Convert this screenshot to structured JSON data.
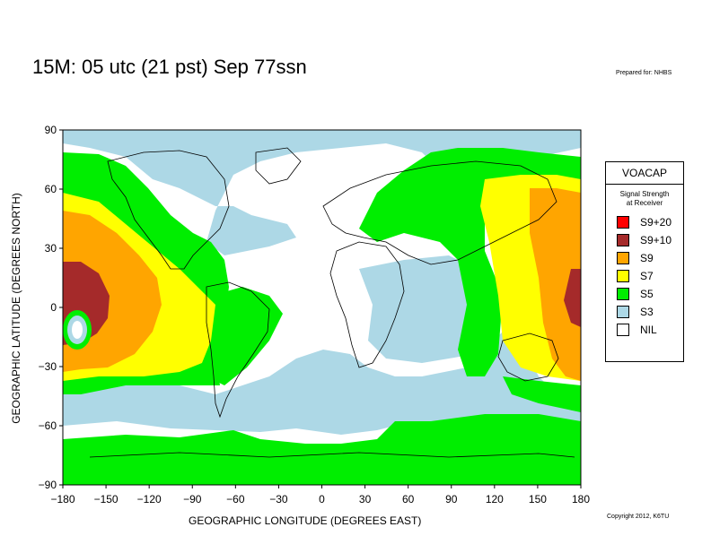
{
  "title": "15M:  05 utc (21 pst) Sep 77ssn",
  "prepared_for": "Prepared for: NHBS",
  "copyright": "Copyright 2012, K6TU",
  "map": {
    "x_axis_label": "GEOGRAPHIC LONGITUDE (DEGREES EAST)",
    "y_axis_label": "GEOGRAPHIC LATITUDE (DEGREES NORTH)",
    "x_ticks": [
      "−180",
      "−150",
      "−120",
      "−90",
      "−60",
      "−30",
      "0",
      "30",
      "60",
      "90",
      "120",
      "150",
      "180"
    ],
    "y_ticks": [
      "90",
      "60",
      "30",
      "0",
      "−30",
      "−60",
      "−90"
    ],
    "colors": {
      "nil": "#ffffff",
      "s3": "#add8e6",
      "s5": "#00ee00",
      "s7": "#ffff00",
      "s9": "#ffa500",
      "s9p10": "#a52a2a",
      "s9p20": "#ff0000"
    }
  },
  "legend": {
    "title": "VOACAP",
    "subtitle_line1": "Signal Strength",
    "subtitle_line2": "at Receiver",
    "items": [
      {
        "label": "S9+20",
        "color": "#ff0000"
      },
      {
        "label": "S9+10",
        "color": "#a52a2a"
      },
      {
        "label": "S9",
        "color": "#ffa500"
      },
      {
        "label": "S7",
        "color": "#ffff00"
      },
      {
        "label": "S5",
        "color": "#00ee00"
      },
      {
        "label": "S3",
        "color": "#add8e6"
      },
      {
        "label": "NIL",
        "color": "#ffffff"
      }
    ]
  }
}
